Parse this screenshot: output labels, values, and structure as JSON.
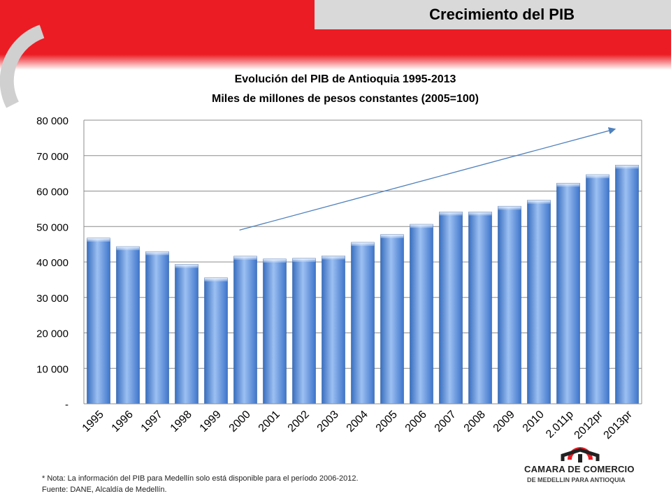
{
  "header": {
    "title": "Crecimiento del PIB"
  },
  "chart_data": {
    "type": "bar",
    "title": "Evolución del PIB de Antioquia 1995-2013",
    "subtitle": "Miles de millones de pesos constantes (2005=100)",
    "xlabel": "",
    "ylabel": "",
    "categories": [
      "1995",
      "1996",
      "1997",
      "1998",
      "1999",
      "2000",
      "2001",
      "2002",
      "2003",
      "2004",
      "2005",
      "2006",
      "2007",
      "2008",
      "2009",
      "2010",
      "2.011p",
      "2012pr",
      "2013pr"
    ],
    "values": [
      46700,
      44300,
      42900,
      39300,
      35500,
      41600,
      40800,
      41000,
      41700,
      45500,
      47700,
      50600,
      54100,
      54100,
      55700,
      57400,
      62200,
      64600,
      67300
    ],
    "ylim": [
      0,
      80000
    ],
    "yticks": [
      0,
      10000,
      20000,
      30000,
      40000,
      50000,
      60000,
      70000,
      80000
    ],
    "ytick_labels": [
      "-",
      "10 000",
      "20 000",
      "30 000",
      "40 000",
      "50 000",
      "60 000",
      "70 000",
      "80 000"
    ],
    "grid": true,
    "bar_color": "#5b8fd8",
    "trend_arrow": {
      "from": [
        "2000",
        49000
      ],
      "to": [
        "2013pr",
        77500
      ],
      "color": "#4f81bd"
    }
  },
  "notes": {
    "note": "* Nota: La información del PIB para Medellín solo está disponible para el período 2006-2012.",
    "source": "Fuente: DANE, Alcaldía de Medellín."
  },
  "logo": {
    "line1": "CAMARA DE COMERCIO",
    "line2": "DE MEDELLIN PARA ANTIOQUIA"
  }
}
